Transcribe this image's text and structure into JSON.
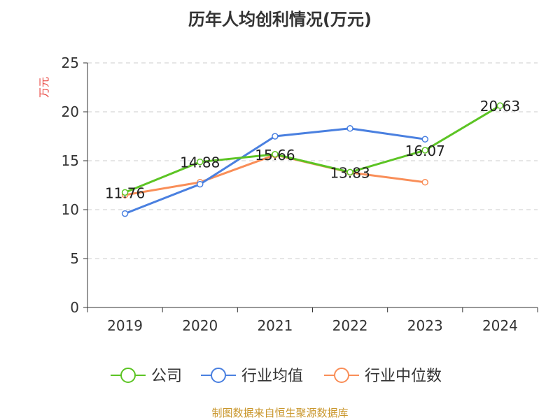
{
  "chart_data": {
    "type": "line",
    "title": "历年人均创利情况(万元)",
    "ylabel": "万元",
    "categories": [
      "2019",
      "2020",
      "2021",
      "2022",
      "2023",
      "2024"
    ],
    "ylim": [
      0,
      25
    ],
    "yticks": [
      0,
      5,
      10,
      15,
      20,
      25
    ],
    "grid": true,
    "legend_placement": "bottom",
    "series": [
      {
        "name": "公司",
        "color": "#5cc424",
        "values": [
          11.76,
          14.88,
          15.66,
          13.83,
          16.07,
          20.63
        ],
        "labels": [
          "11.76",
          "14.88",
          "15.66",
          "13.83",
          "16.07",
          "20.63"
        ]
      },
      {
        "name": "行业均值",
        "color": "#4a80e0",
        "values": [
          9.6,
          12.6,
          17.5,
          18.3,
          17.2,
          null
        ]
      },
      {
        "name": "行业中位数",
        "color": "#f98e58",
        "values": [
          11.5,
          12.8,
          15.6,
          13.8,
          12.8,
          null
        ]
      }
    ]
  },
  "source": "制图数据来自恒生聚源数据库"
}
